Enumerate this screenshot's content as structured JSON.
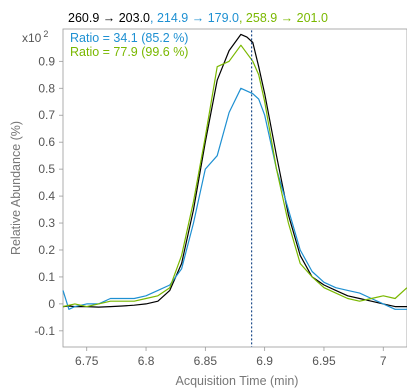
{
  "chart_data": {
    "type": "line",
    "title": {
      "transitions": [
        {
          "text": "260.9 → 203.0",
          "color": "#000000"
        },
        {
          "text": ", 214.9 → 179.0",
          "color": "#1e90d2"
        },
        {
          "text": ", 258.9 → 201.0",
          "color": "#7ab800"
        }
      ]
    },
    "ratios": [
      {
        "text": "Ratio = 34.1 (85.2 %)",
        "color": "#1e90d2"
      },
      {
        "text": "Ratio = 77.9 (99.6 %)",
        "color": "#7ab800"
      }
    ],
    "scale_multiplier": {
      "base": "x10",
      "exponent": "2"
    },
    "xlabel": "Acquisition Time (min)",
    "ylabel": "Relative Abundance (%)",
    "xlim": [
      6.73,
      7.02
    ],
    "ylim": [
      -0.16,
      1.02
    ],
    "x_ticks": [
      6.75,
      6.8,
      6.85,
      6.9,
      6.95,
      7
    ],
    "x_tick_labels": [
      "6.75",
      "6.8",
      "6.85",
      "6.9",
      "6.95",
      "7"
    ],
    "y_ticks": [
      -0.1,
      0,
      0.1,
      0.2,
      0.3,
      0.4,
      0.5,
      0.6,
      0.7,
      0.8,
      0.9
    ],
    "y_tick_labels": [
      "-0.1",
      "0",
      "0.1",
      "0.2",
      "0.3",
      "0.4",
      "0.5",
      "0.6",
      "0.7",
      "0.8",
      "0.9"
    ],
    "marker_x": 6.889,
    "marker_color": "#1f4e8c",
    "series": [
      {
        "color": "#000000",
        "points": [
          [
            6.73,
            -0.01
          ],
          [
            6.735,
            -0.008
          ],
          [
            6.74,
            -0.01
          ],
          [
            6.75,
            -0.01
          ],
          [
            6.76,
            -0.012
          ],
          [
            6.77,
            -0.01
          ],
          [
            6.78,
            -0.008
          ],
          [
            6.79,
            -0.005
          ],
          [
            6.8,
            0.0
          ],
          [
            6.81,
            0.01
          ],
          [
            6.82,
            0.05
          ],
          [
            6.83,
            0.15
          ],
          [
            6.84,
            0.35
          ],
          [
            6.85,
            0.6
          ],
          [
            6.86,
            0.83
          ],
          [
            6.87,
            0.94
          ],
          [
            6.88,
            1.0
          ],
          [
            6.885,
            0.99
          ],
          [
            6.89,
            0.97
          ],
          [
            6.895,
            0.88
          ],
          [
            6.9,
            0.78
          ],
          [
            6.91,
            0.55
          ],
          [
            6.92,
            0.33
          ],
          [
            6.93,
            0.18
          ],
          [
            6.94,
            0.1
          ],
          [
            6.95,
            0.07
          ],
          [
            6.96,
            0.05
          ],
          [
            6.97,
            0.03
          ],
          [
            6.98,
            0.02
          ],
          [
            6.99,
            0.01
          ],
          [
            7.0,
            0.0
          ],
          [
            7.01,
            -0.01
          ],
          [
            7.02,
            -0.01
          ]
        ]
      },
      {
        "color": "#1e90d2",
        "points": [
          [
            6.73,
            0.05
          ],
          [
            6.735,
            -0.02
          ],
          [
            6.74,
            -0.01
          ],
          [
            6.75,
            0.0
          ],
          [
            6.76,
            0.0
          ],
          [
            6.77,
            0.02
          ],
          [
            6.78,
            0.02
          ],
          [
            6.79,
            0.02
          ],
          [
            6.8,
            0.03
          ],
          [
            6.81,
            0.05
          ],
          [
            6.82,
            0.07
          ],
          [
            6.83,
            0.13
          ],
          [
            6.84,
            0.3
          ],
          [
            6.85,
            0.5
          ],
          [
            6.86,
            0.55
          ],
          [
            6.87,
            0.71
          ],
          [
            6.88,
            0.8
          ],
          [
            6.89,
            0.78
          ],
          [
            6.895,
            0.76
          ],
          [
            6.9,
            0.7
          ],
          [
            6.91,
            0.5
          ],
          [
            6.92,
            0.35
          ],
          [
            6.93,
            0.2
          ],
          [
            6.94,
            0.12
          ],
          [
            6.95,
            0.08
          ],
          [
            6.96,
            0.06
          ],
          [
            6.97,
            0.05
          ],
          [
            6.98,
            0.04
          ],
          [
            6.99,
            0.02
          ],
          [
            7.0,
            0.0
          ],
          [
            7.01,
            -0.02
          ],
          [
            7.02,
            -0.02
          ]
        ]
      },
      {
        "color": "#7ab800",
        "points": [
          [
            6.73,
            -0.01
          ],
          [
            6.74,
            0.0
          ],
          [
            6.75,
            -0.01
          ],
          [
            6.76,
            0.0
          ],
          [
            6.77,
            0.01
          ],
          [
            6.78,
            0.01
          ],
          [
            6.79,
            0.01
          ],
          [
            6.8,
            0.02
          ],
          [
            6.81,
            0.03
          ],
          [
            6.82,
            0.06
          ],
          [
            6.83,
            0.18
          ],
          [
            6.84,
            0.38
          ],
          [
            6.85,
            0.62
          ],
          [
            6.86,
            0.88
          ],
          [
            6.87,
            0.9
          ],
          [
            6.88,
            0.96
          ],
          [
            6.89,
            0.9
          ],
          [
            6.895,
            0.85
          ],
          [
            6.9,
            0.75
          ],
          [
            6.91,
            0.5
          ],
          [
            6.92,
            0.3
          ],
          [
            6.93,
            0.15
          ],
          [
            6.94,
            0.1
          ],
          [
            6.95,
            0.06
          ],
          [
            6.96,
            0.04
          ],
          [
            6.97,
            0.02
          ],
          [
            6.98,
            0.01
          ],
          [
            6.99,
            0.02
          ],
          [
            7.0,
            0.03
          ],
          [
            7.01,
            0.02
          ],
          [
            7.02,
            0.06
          ]
        ]
      }
    ],
    "grid": false,
    "legend": "top-left"
  }
}
